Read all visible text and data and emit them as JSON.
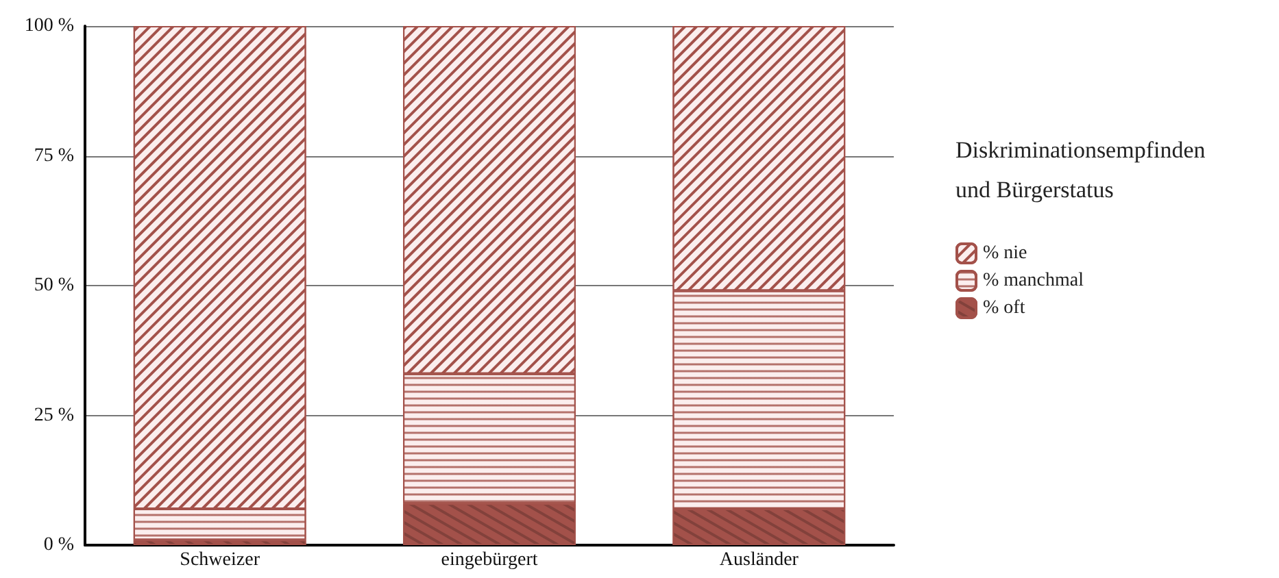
{
  "chart_data": {
    "type": "bar",
    "stacked": true,
    "categories": [
      "Schweizer",
      "eingebürgert",
      "Ausländer"
    ],
    "series": [
      {
        "name": "% oft",
        "color": "#a3514a",
        "values": [
          1,
          8,
          7
        ]
      },
      {
        "name": "% manchmal",
        "color": "#a3514a",
        "values": [
          6,
          25,
          42
        ]
      },
      {
        "name": "% nie",
        "color": "#a3514a",
        "values": [
          93,
          67,
          51
        ]
      }
    ],
    "ylim": [
      0,
      100
    ],
    "yticks": [
      {
        "value": 0,
        "label": "0 %"
      },
      {
        "value": 25,
        "label": "25 %"
      },
      {
        "value": 50,
        "label": "50 %"
      },
      {
        "value": 75,
        "label": "75 %"
      },
      {
        "value": 100,
        "label": "100 %"
      }
    ],
    "grid": "y",
    "legend": "right",
    "legend_title": "Diskriminationsempfinden\nund Bürgerstatus"
  }
}
